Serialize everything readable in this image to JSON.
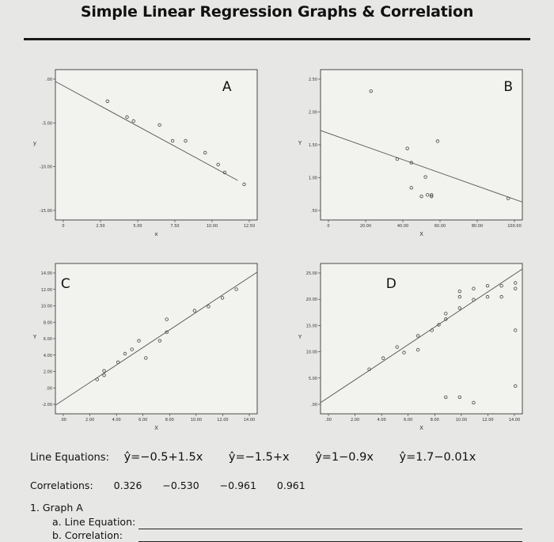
{
  "title": "Simple Linear Regression Graphs & Correlation",
  "chart_data": [
    {
      "type": "scatter",
      "label": "A",
      "xlabel": "x",
      "ylabel": "y",
      "x_ticks": [
        "0",
        "2.50",
        "5.00",
        "7.50",
        "10.00",
        "12.50"
      ],
      "y_ticks": [
        ".00",
        "-5.00",
        "-10.00",
        "-15.00"
      ],
      "xlim": [
        -1,
        14.5
      ],
      "ylim": [
        -17,
        2
      ],
      "points": [
        [
          3,
          -2
        ],
        [
          4.5,
          -4
        ],
        [
          7,
          -5
        ],
        [
          9,
          -7
        ],
        [
          10.5,
          -8.5
        ],
        [
          8,
          -7
        ],
        [
          11.5,
          -10
        ],
        [
          12,
          -11
        ],
        [
          13.5,
          -12.5
        ],
        [
          5,
          -4.5
        ]
      ],
      "line": [
        [
          -1,
          0.5
        ],
        [
          13,
          -12
        ]
      ]
    },
    {
      "type": "scatter",
      "label": "B",
      "xlabel": "X",
      "ylabel": "Y",
      "x_ticks": [
        "0",
        "20.00",
        "40.00",
        "60.00",
        "80.00",
        "100.00"
      ],
      "y_ticks": [
        "2.50",
        "2.00",
        "1.50",
        "1.00",
        ".50"
      ],
      "xlim": [
        0,
        100
      ],
      "ylim": [
        0.45,
        2.55
      ],
      "points": [
        [
          25,
          2.25
        ],
        [
          43,
          1.45
        ],
        [
          38,
          1.3
        ],
        [
          45,
          1.25
        ],
        [
          52,
          1.05
        ],
        [
          58,
          1.55
        ],
        [
          45,
          0.9
        ],
        [
          50,
          0.78
        ],
        [
          53,
          0.8
        ],
        [
          55,
          0.78
        ],
        [
          55,
          0.8
        ],
        [
          93,
          0.75
        ]
      ],
      "line": [
        [
          0,
          1.7
        ],
        [
          100,
          0.7
        ]
      ]
    },
    {
      "type": "scatter",
      "label": "C",
      "xlabel": "X",
      "ylabel": "Y",
      "x_ticks": [
        ".00",
        "2.00",
        "4.00",
        "6.00",
        "8.00",
        "10.00",
        "12.00",
        "14.00"
      ],
      "y_ticks": [
        "14.00",
        "12.00",
        "10.00",
        "8.00",
        "6.00",
        "4.00",
        "2.00",
        ".00",
        "-2.00"
      ],
      "xlim": [
        0,
        14.5
      ],
      "ylim": [
        -2.5,
        15
      ],
      "points": [
        [
          3,
          1.5
        ],
        [
          3.5,
          2.5
        ],
        [
          4.5,
          3.5
        ],
        [
          5,
          4.5
        ],
        [
          5.5,
          5
        ],
        [
          6,
          6
        ],
        [
          6.5,
          4
        ],
        [
          7.5,
          6
        ],
        [
          8,
          7
        ],
        [
          8,
          8.5
        ],
        [
          10,
          9.5
        ],
        [
          12,
          11
        ],
        [
          13,
          12
        ],
        [
          11,
          10
        ],
        [
          3.5,
          2
        ]
      ],
      "line": [
        [
          0,
          -1.5
        ],
        [
          14.5,
          14
        ]
      ]
    },
    {
      "type": "scatter",
      "label": "D",
      "xlabel": "X",
      "ylabel": "Y",
      "x_ticks": [
        ".00",
        "2.00",
        "4.00",
        "6.00",
        "8.00",
        "10.00",
        "12.00",
        "14.00"
      ],
      "y_ticks": [
        "25.00",
        "20.00",
        "15.00",
        "10.00",
        "5.00",
        ".00"
      ],
      "xlim": [
        0,
        14.5
      ],
      "ylim": [
        -1,
        26
      ],
      "points": [
        [
          3.5,
          7
        ],
        [
          4.5,
          9
        ],
        [
          5.5,
          11
        ],
        [
          6,
          10
        ],
        [
          7,
          10.5
        ],
        [
          7,
          13
        ],
        [
          8,
          14
        ],
        [
          8.5,
          15
        ],
        [
          9,
          16
        ],
        [
          9,
          17
        ],
        [
          10,
          18
        ],
        [
          10,
          20
        ],
        [
          10,
          21
        ],
        [
          11,
          19.5
        ],
        [
          11,
          21.5
        ],
        [
          12,
          20
        ],
        [
          12,
          22
        ],
        [
          13,
          20
        ],
        [
          13,
          22
        ],
        [
          14,
          21.5
        ],
        [
          14,
          22.5
        ],
        [
          14,
          14
        ],
        [
          14,
          4
        ],
        [
          9,
          2
        ],
        [
          10,
          2
        ],
        [
          11,
          1
        ]
      ],
      "line": [
        [
          0,
          1
        ],
        [
          14.5,
          25
        ]
      ]
    }
  ],
  "equations": {
    "label": "Line Equations:",
    "items": [
      "ŷ=−0.5+1.5x",
      "ŷ=−1.5+x",
      "ŷ=1−0.9x",
      "ŷ=1.7−0.01x"
    ]
  },
  "correlations": {
    "label": "Correlations:",
    "items": [
      "0.326",
      "−0.530",
      "−0.961",
      "0.961"
    ]
  },
  "question": {
    "heading": "1. Graph A",
    "a": "a. Line Equation:",
    "b": "b. Correlation:"
  }
}
